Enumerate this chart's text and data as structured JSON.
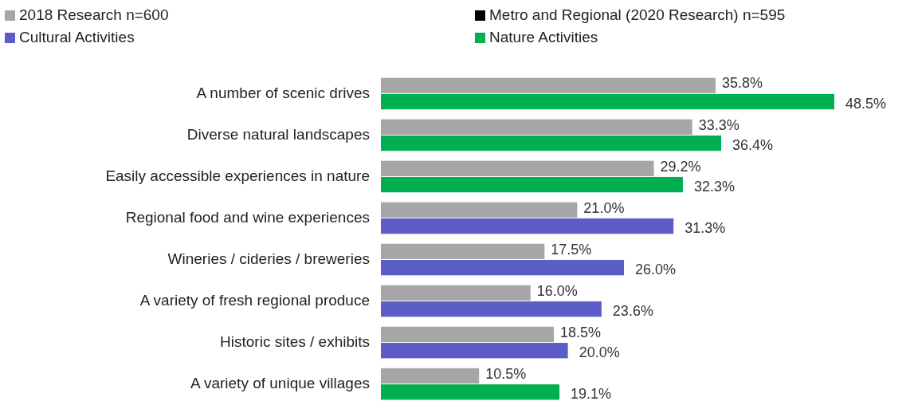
{
  "chart_data": {
    "type": "bar",
    "orientation": "horizontal",
    "legend": "top left",
    "categories": [
      "A number of scenic drives",
      "Diverse natural landscapes",
      "Easily accessible experiences in nature",
      "Regional food and wine experiences",
      "Wineries / cideries / breweries",
      "A variety of fresh regional produce",
      "Historic sites / exhibits",
      "A variety of unique villages"
    ],
    "series": [
      {
        "name": "2018 Research n=600",
        "color": "#a6a6a6",
        "values": [
          35.8,
          33.3,
          29.2,
          21.0,
          17.5,
          16.0,
          18.5,
          10.5
        ],
        "value_labels": [
          "35.8%",
          "33.3%",
          "29.2%",
          "21.0%",
          "17.5%",
          "16.0%",
          "18.5%",
          "10.5%"
        ]
      },
      {
        "name": "Metro and Regional (2020 Research) n=595",
        "color": "#000000",
        "values": [
          null,
          null,
          null,
          null,
          null,
          null,
          null,
          null
        ]
      },
      {
        "name": "Cultural Activities",
        "color": "#5b5cc8",
        "values": [
          null,
          null,
          null,
          31.3,
          26.0,
          23.6,
          20.0,
          null
        ],
        "value_labels": [
          null,
          null,
          null,
          "31.3%",
          "26.0%",
          "23.6%",
          "20.0%",
          null
        ]
      },
      {
        "name": "Nature Activities",
        "color": "#00b050",
        "values": [
          48.5,
          36.4,
          32.3,
          null,
          null,
          null,
          null,
          19.1
        ],
        "value_labels": [
          "48.5%",
          "36.4%",
          "32.3%",
          null,
          null,
          null,
          null,
          "19.1%"
        ]
      }
    ]
  }
}
